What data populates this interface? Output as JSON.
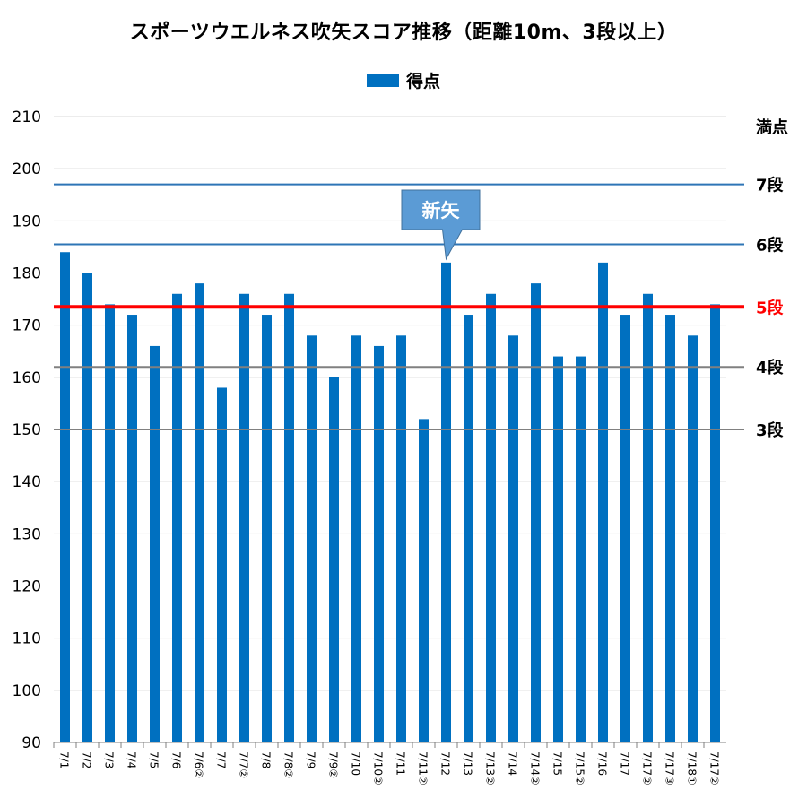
{
  "chart_data": {
    "type": "bar",
    "title": "スポーツウエルネス吹矢スコア推移（距離10m、3段以上）",
    "legend": {
      "label": "得点",
      "position": "top"
    },
    "colors": {
      "bars": "#0070C0",
      "ref_5dan": "#FF0000",
      "ref_blue": "#2E75B6",
      "ref_gray": "#808080",
      "grid": "#D9D9D9",
      "callout": "#5B9BD5"
    },
    "ylim": [
      90,
      210
    ],
    "yticks": [
      90,
      100,
      110,
      120,
      130,
      140,
      150,
      160,
      170,
      180,
      190,
      200,
      210
    ],
    "grid": true,
    "categories": [
      "7/1",
      "7/2",
      "7/3",
      "7/4",
      "7/5",
      "7/6",
      "7/6②",
      "7/7",
      "7/7②",
      "7/8",
      "7/8②",
      "7/9",
      "7/9②",
      "7/10",
      "7/10②",
      "7/11",
      "7/11②",
      "7/12",
      "7/13",
      "7/13②",
      "7/14",
      "7/14②",
      "7/15",
      "7/15②",
      "7/16",
      "7/17",
      "7/17②",
      "7/17③",
      "7/18①",
      "7/17②"
    ],
    "series": [
      {
        "name": "得点",
        "values": [
          184,
          180,
          174,
          172,
          166,
          176,
          178,
          158,
          176,
          172,
          176,
          168,
          160,
          168,
          166,
          168,
          152,
          182,
          172,
          176,
          168,
          178,
          164,
          164,
          182,
          172,
          176,
          172,
          168,
          174
        ]
      }
    ],
    "reference_lines": [
      {
        "label": "満点",
        "value": 210,
        "style": "text-only",
        "color": "#000000"
      },
      {
        "label": "7段",
        "value": 197,
        "style": "blue",
        "color": "#000000"
      },
      {
        "label": "6段",
        "value": 185.5,
        "style": "blue",
        "color": "#000000"
      },
      {
        "label": "5段",
        "value": 173.5,
        "style": "red",
        "color": "#FF0000"
      },
      {
        "label": "4段",
        "value": 162,
        "style": "gray",
        "color": "#000000"
      },
      {
        "label": "3段",
        "value": 150,
        "style": "gray",
        "color": "#000000"
      }
    ],
    "annotation": {
      "text": "新矢",
      "category_index": 17
    }
  }
}
